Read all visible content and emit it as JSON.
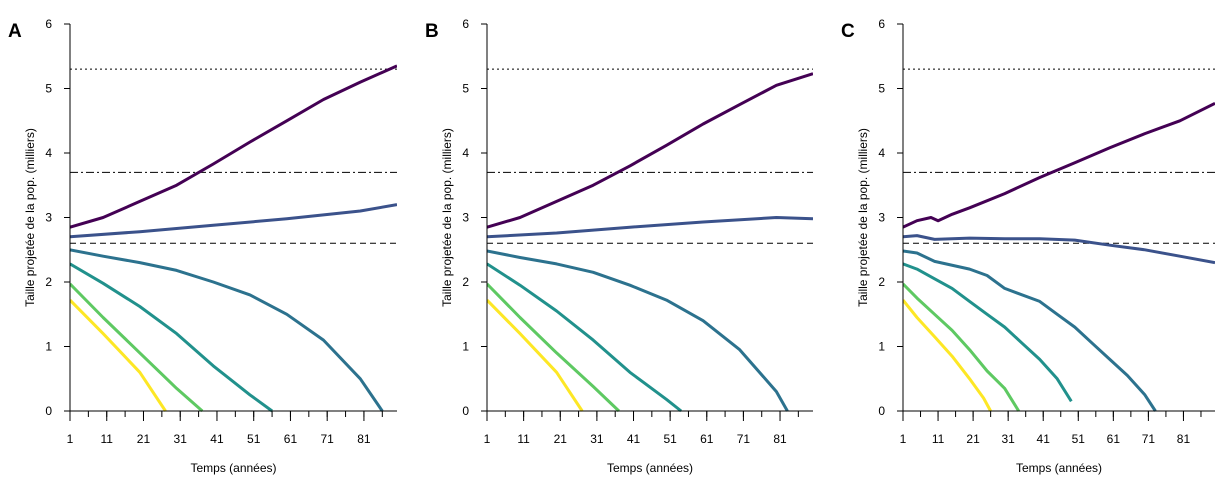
{
  "chart_data": [
    {
      "type": "line",
      "panel_label": "A",
      "xlabel": "Temps (années)",
      "ylabel": "Taille projetée de la pop. (milliers)",
      "xlim": [
        1,
        90
      ],
      "ylim": [
        0,
        6
      ],
      "x_ticks": [
        1,
        11,
        21,
        31,
        41,
        51,
        61,
        71,
        81
      ],
      "y_ticks": [
        0,
        1,
        2,
        3,
        4,
        5,
        6
      ],
      "reference_lines": [
        {
          "style": "dotted",
          "y": 5.3
        },
        {
          "style": "dashdot",
          "y": 3.7
        },
        {
          "style": "dashed",
          "y": 2.6
        }
      ],
      "series": [
        {
          "color": "#440154",
          "points": [
            [
              1,
              2.85
            ],
            [
              10,
              3.0
            ],
            [
              20,
              3.25
            ],
            [
              30,
              3.5
            ],
            [
              40,
              3.83
            ],
            [
              50,
              4.17
            ],
            [
              60,
              4.5
            ],
            [
              70,
              4.83
            ],
            [
              80,
              5.1
            ],
            [
              90,
              5.35
            ]
          ]
        },
        {
          "color": "#3b528b",
          "points": [
            [
              1,
              2.7
            ],
            [
              20,
              2.78
            ],
            [
              40,
              2.88
            ],
            [
              60,
              2.98
            ],
            [
              80,
              3.1
            ],
            [
              90,
              3.2
            ]
          ]
        },
        {
          "color": "#2c728e",
          "points": [
            [
              1,
              2.5
            ],
            [
              10,
              2.4
            ],
            [
              20,
              2.3
            ],
            [
              30,
              2.18
            ],
            [
              40,
              2.0
            ],
            [
              50,
              1.8
            ],
            [
              60,
              1.5
            ],
            [
              70,
              1.1
            ],
            [
              80,
              0.5
            ],
            [
              86,
              0
            ]
          ]
        },
        {
          "color": "#21918c",
          "points": [
            [
              1,
              2.28
            ],
            [
              10,
              1.98
            ],
            [
              20,
              1.62
            ],
            [
              30,
              1.2
            ],
            [
              40,
              0.7
            ],
            [
              50,
              0.25
            ],
            [
              56,
              0
            ]
          ]
        },
        {
          "color": "#5ec962",
          "points": [
            [
              1,
              1.97
            ],
            [
              10,
              1.45
            ],
            [
              20,
              0.9
            ],
            [
              30,
              0.35
            ],
            [
              37,
              0
            ]
          ]
        },
        {
          "color": "#fde725",
          "points": [
            [
              1,
              1.72
            ],
            [
              10,
              1.2
            ],
            [
              20,
              0.6
            ],
            [
              27,
              0
            ]
          ]
        }
      ]
    },
    {
      "type": "line",
      "panel_label": "B",
      "xlabel": "Temps (années)",
      "ylabel": "Taille projetée de la pop. (milliers)",
      "xlim": [
        1,
        90
      ],
      "ylim": [
        0,
        6
      ],
      "x_ticks": [
        1,
        11,
        21,
        31,
        41,
        51,
        61,
        71,
        81
      ],
      "y_ticks": [
        0,
        1,
        2,
        3,
        4,
        5,
        6
      ],
      "reference_lines": [
        {
          "style": "dotted",
          "y": 5.3
        },
        {
          "style": "dashdot",
          "y": 3.7
        },
        {
          "style": "dashed",
          "y": 2.6
        }
      ],
      "series": [
        {
          "color": "#440154",
          "points": [
            [
              1,
              2.85
            ],
            [
              10,
              3.0
            ],
            [
              20,
              3.25
            ],
            [
              30,
              3.5
            ],
            [
              40,
              3.8
            ],
            [
              50,
              4.12
            ],
            [
              60,
              4.45
            ],
            [
              70,
              4.75
            ],
            [
              80,
              5.05
            ],
            [
              90,
              5.23
            ]
          ]
        },
        {
          "color": "#3b528b",
          "points": [
            [
              1,
              2.7
            ],
            [
              20,
              2.76
            ],
            [
              40,
              2.85
            ],
            [
              60,
              2.93
            ],
            [
              80,
              3.0
            ],
            [
              90,
              2.98
            ]
          ]
        },
        {
          "color": "#2c728e",
          "points": [
            [
              1,
              2.48
            ],
            [
              10,
              2.38
            ],
            [
              20,
              2.28
            ],
            [
              30,
              2.15
            ],
            [
              40,
              1.95
            ],
            [
              50,
              1.72
            ],
            [
              60,
              1.4
            ],
            [
              70,
              0.95
            ],
            [
              80,
              0.3
            ],
            [
              83,
              0
            ]
          ]
        },
        {
          "color": "#21918c",
          "points": [
            [
              1,
              2.28
            ],
            [
              10,
              1.95
            ],
            [
              20,
              1.55
            ],
            [
              30,
              1.1
            ],
            [
              40,
              0.6
            ],
            [
              50,
              0.18
            ],
            [
              54,
              0
            ]
          ]
        },
        {
          "color": "#5ec962",
          "points": [
            [
              1,
              1.97
            ],
            [
              10,
              1.45
            ],
            [
              20,
              0.9
            ],
            [
              30,
              0.38
            ],
            [
              37,
              0
            ]
          ]
        },
        {
          "color": "#fde725",
          "points": [
            [
              1,
              1.72
            ],
            [
              10,
              1.2
            ],
            [
              20,
              0.6
            ],
            [
              27,
              0
            ]
          ]
        }
      ]
    },
    {
      "type": "line",
      "panel_label": "C",
      "xlabel": "Temps (années)",
      "ylabel": "Taille projetée de la pop. (milliers)",
      "xlim": [
        1,
        90
      ],
      "ylim": [
        0,
        6
      ],
      "x_ticks": [
        1,
        11,
        21,
        31,
        41,
        51,
        61,
        71,
        81
      ],
      "y_ticks": [
        0,
        1,
        2,
        3,
        4,
        5,
        6
      ],
      "reference_lines": [
        {
          "style": "dotted",
          "y": 5.3
        },
        {
          "style": "dashdot",
          "y": 3.7
        },
        {
          "style": "dashed",
          "y": 2.6
        }
      ],
      "series": [
        {
          "color": "#440154",
          "points": [
            [
              1,
              2.85
            ],
            [
              5,
              2.95
            ],
            [
              9,
              3.0
            ],
            [
              11,
              2.95
            ],
            [
              15,
              3.05
            ],
            [
              20,
              3.15
            ],
            [
              30,
              3.37
            ],
            [
              40,
              3.62
            ],
            [
              50,
              3.85
            ],
            [
              60,
              4.08
            ],
            [
              70,
              4.3
            ],
            [
              80,
              4.5
            ],
            [
              90,
              4.77
            ]
          ]
        },
        {
          "color": "#3b528b",
          "points": [
            [
              1,
              2.7
            ],
            [
              5,
              2.72
            ],
            [
              10,
              2.66
            ],
            [
              20,
              2.68
            ],
            [
              30,
              2.67
            ],
            [
              40,
              2.67
            ],
            [
              50,
              2.65
            ],
            [
              60,
              2.57
            ],
            [
              70,
              2.5
            ],
            [
              80,
              2.4
            ],
            [
              90,
              2.3
            ]
          ]
        },
        {
          "color": "#2c728e",
          "points": [
            [
              1,
              2.48
            ],
            [
              5,
              2.45
            ],
            [
              10,
              2.32
            ],
            [
              20,
              2.2
            ],
            [
              25,
              2.1
            ],
            [
              30,
              1.9
            ],
            [
              40,
              1.7
            ],
            [
              45,
              1.5
            ],
            [
              50,
              1.3
            ],
            [
              55,
              1.05
            ],
            [
              60,
              0.8
            ],
            [
              65,
              0.55
            ],
            [
              70,
              0.25
            ],
            [
              73,
              0
            ]
          ]
        },
        {
          "color": "#21918c",
          "points": [
            [
              1,
              2.28
            ],
            [
              5,
              2.2
            ],
            [
              10,
              2.05
            ],
            [
              15,
              1.9
            ],
            [
              20,
              1.7
            ],
            [
              25,
              1.5
            ],
            [
              30,
              1.3
            ],
            [
              35,
              1.05
            ],
            [
              40,
              0.8
            ],
            [
              45,
              0.5
            ],
            [
              49,
              0.15
            ]
          ]
        },
        {
          "color": "#5ec962",
          "points": [
            [
              1,
              1.97
            ],
            [
              5,
              1.75
            ],
            [
              10,
              1.5
            ],
            [
              15,
              1.25
            ],
            [
              20,
              0.95
            ],
            [
              25,
              0.62
            ],
            [
              30,
              0.35
            ],
            [
              34,
              0
            ]
          ]
        },
        {
          "color": "#fde725",
          "points": [
            [
              1,
              1.72
            ],
            [
              5,
              1.45
            ],
            [
              10,
              1.15
            ],
            [
              15,
              0.85
            ],
            [
              20,
              0.5
            ],
            [
              24,
              0.2
            ],
            [
              26,
              0
            ]
          ]
        }
      ]
    }
  ]
}
